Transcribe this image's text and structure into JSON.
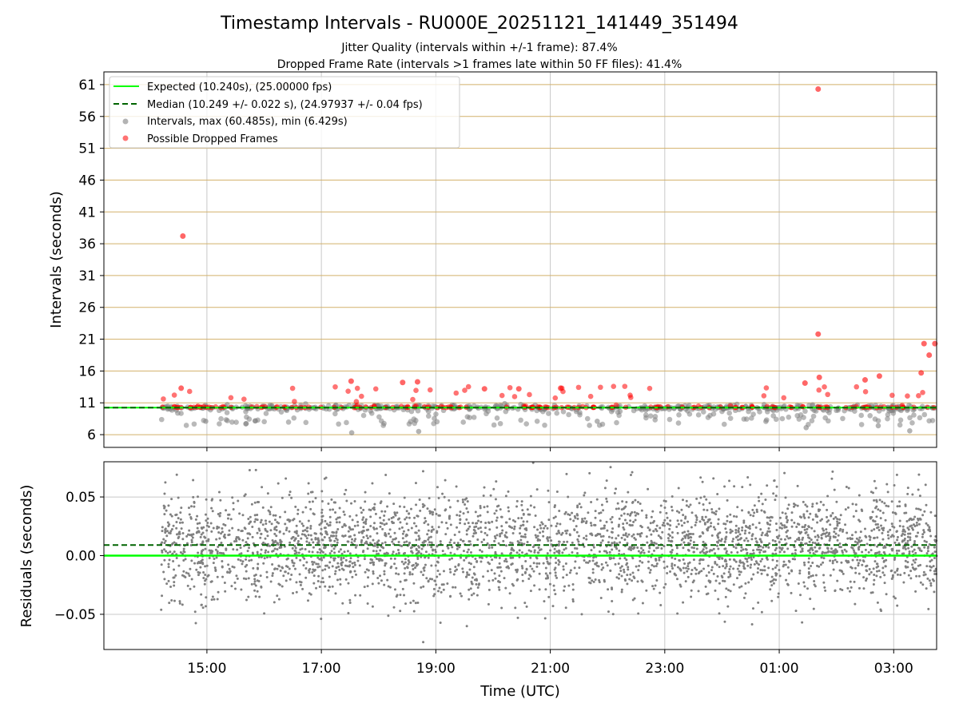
{
  "figure": {
    "title": "Timestamp Intervals - RU000E_20251121_141449_351494",
    "subtitle_1": "Jitter Quality (intervals within +/-1 frame): 87.4%",
    "subtitle_2": "Dropped Frame Rate (intervals >1 frames late within 50 FF files): 41.4%"
  },
  "colors": {
    "expected": "#00ff00",
    "median": "#006400",
    "intervals": "#808080",
    "dropped": "#ff0000",
    "hgrid_top": "#d2b16a",
    "vgrid": "#c8c8c8"
  },
  "chart_data": [
    {
      "type": "scatter",
      "ylabel": "Intervals (seconds)",
      "xlim": [
        13.2,
        27.75
      ],
      "ylim": [
        4.0,
        63.0
      ],
      "yticks": [
        6,
        11,
        16,
        21,
        26,
        31,
        36,
        41,
        46,
        51,
        56,
        61
      ],
      "ytick_labels": [
        "6",
        "11",
        "16",
        "21",
        "26",
        "31",
        "36",
        "41",
        "46",
        "51",
        "56",
        "61"
      ],
      "xticks": [
        15,
        17,
        19,
        21,
        23,
        25,
        27
      ],
      "grid": true,
      "legend_position": "upper-left",
      "legend": [
        {
          "label": "Expected (10.240s), (25.00000 fps)",
          "kind": "line-solid"
        },
        {
          "label": "Median (10.249 +/- 0.022 s), (24.97937 +/- 0.04 fps)",
          "kind": "line-dashed"
        },
        {
          "label": "Intervals, max (60.485s), min (6.429s)",
          "kind": "marker-gray"
        },
        {
          "label": "Possible Dropped Frames",
          "kind": "marker-red"
        }
      ],
      "expected_y": 10.24,
      "median_y": 10.249,
      "data_start": 14.2,
      "data_end": 27.75,
      "series": [
        {
          "name": "Intervals",
          "color": "#808080",
          "baseline": 10.24,
          "count": 560
        },
        {
          "name": "Possible Dropped Frames",
          "color": "#ff0000",
          "baseline": 10.24,
          "count": 200
        },
        {
          "name": "Possible Dropped Frames",
          "color": "#ff0000",
          "points": [
            {
              "x": 14.58,
              "y": 37.2
            },
            {
              "x": 25.68,
              "y": 60.3
            },
            {
              "x": 25.68,
              "y": 21.8
            },
            {
              "x": 27.53,
              "y": 20.3
            },
            {
              "x": 27.72,
              "y": 20.3
            },
            {
              "x": 27.62,
              "y": 18.5
            },
            {
              "x": 27.48,
              "y": 15.7
            },
            {
              "x": 26.75,
              "y": 15.2
            },
            {
              "x": 26.5,
              "y": 14.6
            },
            {
              "x": 25.7,
              "y": 15.0
            },
            {
              "x": 25.45,
              "y": 14.1
            },
            {
              "x": 17.52,
              "y": 14.4
            },
            {
              "x": 18.42,
              "y": 14.2
            },
            {
              "x": 18.68,
              "y": 14.3
            },
            {
              "x": 14.55,
              "y": 13.3
            },
            {
              "x": 21.18,
              "y": 13.3
            },
            {
              "x": 19.85,
              "y": 13.2
            },
            {
              "x": 20.45,
              "y": 13.2
            }
          ]
        },
        {
          "name": "Intervals",
          "color": "#808080",
          "points": [
            {
              "x": 17.53,
              "y": 6.3
            },
            {
              "x": 18.7,
              "y": 6.5
            },
            {
              "x": 27.28,
              "y": 6.6
            },
            {
              "x": 25.47,
              "y": 7.1
            },
            {
              "x": 26.73,
              "y": 7.4
            },
            {
              "x": 15.68,
              "y": 7.7
            },
            {
              "x": 21.82,
              "y": 8.1
            },
            {
              "x": 14.98,
              "y": 8.1
            }
          ]
        }
      ]
    },
    {
      "type": "scatter",
      "ylabel": "Residuals (seconds)",
      "xlabel": "Time (UTC)",
      "xlim": [
        13.2,
        27.75
      ],
      "ylim": [
        -0.08,
        0.08
      ],
      "yticks": [
        -0.05,
        0.0,
        0.05
      ],
      "ytick_labels": [
        "−0.05",
        "0.00",
        "0.05"
      ],
      "xticks": [
        15,
        17,
        19,
        21,
        23,
        25,
        27
      ],
      "xtick_labels": [
        "15:00",
        "17:00",
        "19:00",
        "21:00",
        "23:00",
        "01:00",
        "03:00"
      ],
      "grid": true,
      "expected_y": 0.0,
      "median_y": 0.009,
      "series": [
        {
          "name": "Residuals",
          "color": "#808080",
          "count": 3400,
          "center": 0.009,
          "spread": 0.022
        }
      ]
    }
  ]
}
